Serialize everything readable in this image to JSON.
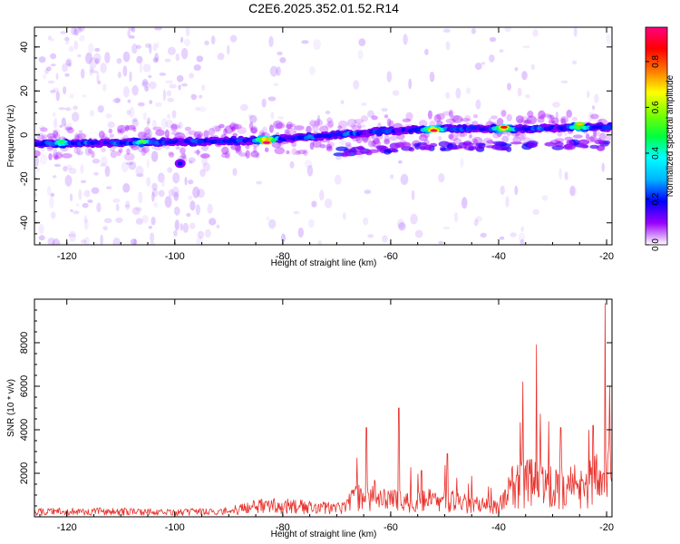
{
  "title": "C2E6.2025.352.01.52.R14",
  "chart_data": [
    {
      "type": "heatmap",
      "name": "spectrogram",
      "xlabel": "Height of straight line (km)",
      "ylabel": "Frequency (Hz)",
      "xlim": [
        -126,
        -19
      ],
      "ylim": [
        -50,
        49
      ],
      "xticks": [
        -120,
        -100,
        -80,
        -60,
        -40,
        -20
      ],
      "yticks": [
        -40,
        -20,
        0,
        20,
        40
      ],
      "colorbar": {
        "label": "Normalized spectral amplitude",
        "range": [
          0,
          0.95
        ],
        "ticks": [
          "0.0",
          "0.2",
          "0.4",
          "0.6",
          "0.8"
        ],
        "tick_values": [
          0,
          0.2,
          0.4,
          0.6,
          0.8
        ],
        "colors": [
          "#ffffff",
          "#9a00ff",
          "#0000ff",
          "#00b4ff",
          "#00ffff",
          "#00ff3c",
          "#7dff00",
          "#ffff00",
          "#ff7800",
          "#ff0000",
          "#ff0080"
        ]
      },
      "ridge": {
        "x": [
          -126,
          -110,
          -95,
          -85,
          -75,
          -65,
          -55,
          -45,
          -35,
          -25,
          -20
        ],
        "frequency": [
          -4,
          -3.5,
          -3,
          -2.5,
          -1,
          1,
          2.5,
          3,
          2.8,
          3.5,
          3.5
        ]
      },
      "peak_amplitude_points": [
        {
          "x": -121,
          "f": -3,
          "a": 0.5
        },
        {
          "x": -106,
          "f": -3,
          "a": 0.55
        },
        {
          "x": -83,
          "f": -3.5,
          "a": 0.95
        },
        {
          "x": -52,
          "f": 2,
          "a": 0.9
        },
        {
          "x": -39,
          "f": 3.5,
          "a": 0.85
        },
        {
          "x": -25,
          "f": 5,
          "a": 0.7
        }
      ]
    },
    {
      "type": "line",
      "name": "snr",
      "xlabel": "Height of straight line (km)",
      "ylabel": "SNR (10 * v/v)",
      "xlim": [
        -126,
        -19
      ],
      "ylim": [
        0,
        10000
      ],
      "xticks": [
        -120,
        -100,
        -80,
        -60,
        -40,
        -20
      ],
      "yticks": [
        2000,
        4000,
        6000,
        8000
      ],
      "color": "#e8302a",
      "envelope": {
        "x": [
          -126,
          -115,
          -100,
          -90,
          -85,
          -80,
          -75,
          -70,
          -66,
          -63,
          -60,
          -55,
          -50,
          -45,
          -40,
          -38,
          -34,
          -30,
          -25,
          -21,
          -20,
          -19
        ],
        "y": [
          400,
          450,
          350,
          450,
          800,
          900,
          750,
          700,
          1500,
          1700,
          1400,
          1200,
          1400,
          1000,
          700,
          2300,
          2800,
          2300,
          2400,
          3000,
          3800,
          3500
        ]
      },
      "spikes": [
        {
          "x": -64.5,
          "y": 4100
        },
        {
          "x": -58.5,
          "y": 5000
        },
        {
          "x": -49.5,
          "y": 2900
        },
        {
          "x": -35.5,
          "y": 6200
        },
        {
          "x": -33,
          "y": 7900
        },
        {
          "x": -28.5,
          "y": 4100
        },
        {
          "x": -22.5,
          "y": 4200
        },
        {
          "x": -20.3,
          "y": 9800
        },
        {
          "x": -19.4,
          "y": 6000
        }
      ]
    }
  ]
}
